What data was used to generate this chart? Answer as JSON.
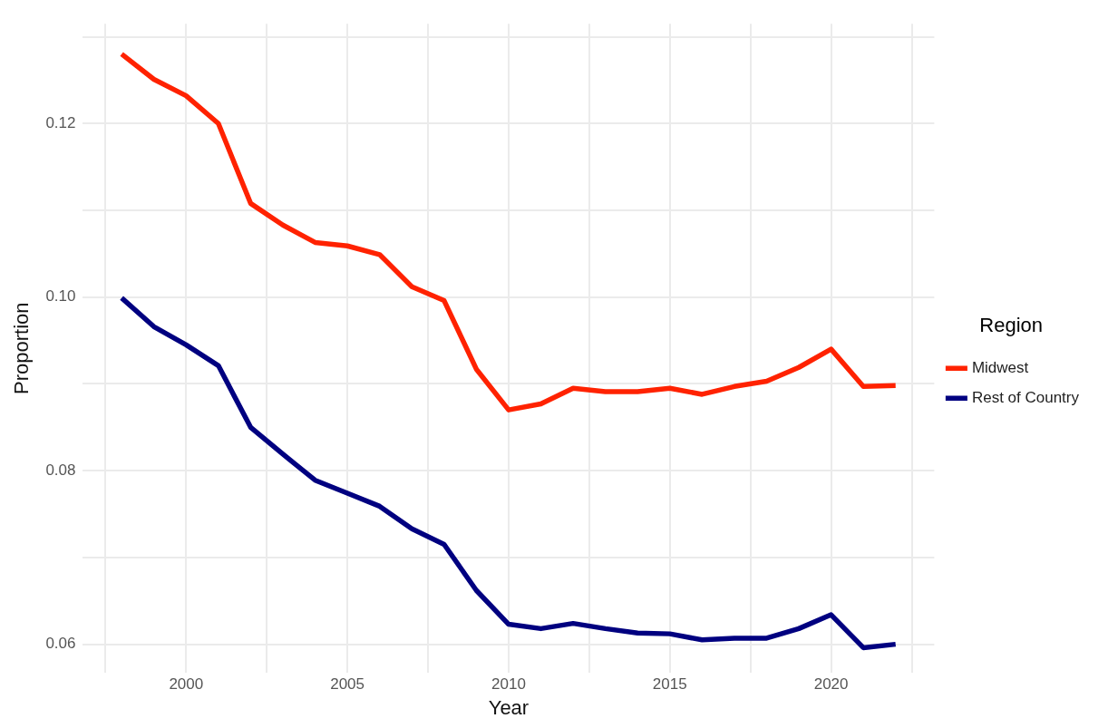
{
  "chart_data": {
    "type": "line",
    "xlabel": "Year",
    "ylabel": "Proportion",
    "legend_title": "Region",
    "legend": "right",
    "grid": true,
    "line_style": "solid",
    "marker": "none",
    "x": [
      1998,
      1999,
      2000,
      2001,
      2002,
      2003,
      2004,
      2005,
      2006,
      2007,
      2008,
      2009,
      2010,
      2011,
      2012,
      2013,
      2014,
      2015,
      2016,
      2017,
      2018,
      2019,
      2020,
      2021,
      2022
    ],
    "xlim": [
      1996.8,
      2023.2
    ],
    "xticks": [
      {
        "value": 1997.5,
        "label": null
      },
      2000,
      {
        "value": 2002.5,
        "label": null
      },
      2005,
      {
        "value": 2007.5,
        "label": null
      },
      2010,
      {
        "value": 2012.5,
        "label": null
      },
      2015,
      {
        "value": 2017.5,
        "label": null
      },
      2020,
      {
        "value": 2022.5,
        "label": null
      }
    ],
    "ylim": [
      0.0567,
      0.1315
    ],
    "yticks": [
      {
        "value": 0.06,
        "label": "0.06"
      },
      {
        "value": 0.07,
        "label": null
      },
      {
        "value": 0.08,
        "label": "0.08"
      },
      {
        "value": 0.09,
        "label": null
      },
      {
        "value": 0.1,
        "label": "0.10"
      },
      {
        "value": 0.11,
        "label": null
      },
      {
        "value": 0.12,
        "label": "0.12"
      },
      {
        "value": 0.13,
        "label": null
      }
    ],
    "series": [
      {
        "name": "Midwest",
        "color": "#ff2200",
        "values": [
          0.128,
          0.1251,
          0.1232,
          0.12,
          0.1108,
          0.1083,
          0.1063,
          0.1059,
          0.1049,
          0.1012,
          0.0996,
          0.0917,
          0.087,
          0.0877,
          0.0895,
          0.0891,
          0.0891,
          0.0895,
          0.0888,
          0.0897,
          0.0903,
          0.0919,
          0.094,
          0.0897,
          0.0898
        ]
      },
      {
        "name": "Rest of Country",
        "color": "#000080",
        "values": [
          0.0999,
          0.0966,
          0.0945,
          0.0921,
          0.085,
          0.0819,
          0.0789,
          0.0774,
          0.0759,
          0.0733,
          0.0715,
          0.0662,
          0.0623,
          0.0618,
          0.0624,
          0.0618,
          0.0613,
          0.0612,
          0.0605,
          0.0607,
          0.0607,
          0.0618,
          0.0634,
          0.0596,
          0.06
        ]
      }
    ]
  }
}
